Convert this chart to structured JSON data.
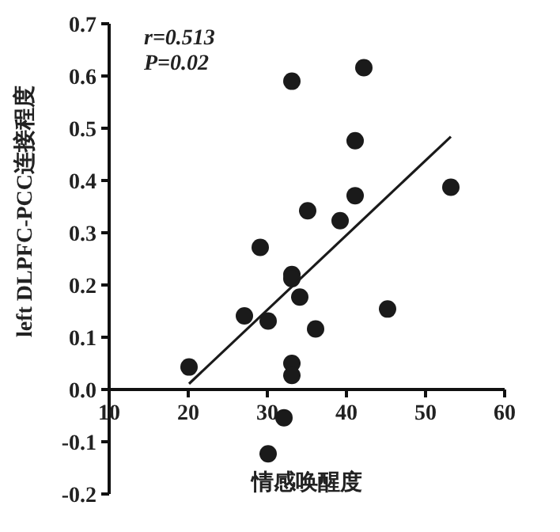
{
  "chart_data": {
    "type": "scatter",
    "xlabel": "情感唤醒度",
    "ylabel": "left DLPFC-PCC连接程度",
    "annotations": [
      "r=0.513",
      "P=0.02"
    ],
    "xlim": [
      10,
      60
    ],
    "ylim": [
      -0.2,
      0.7
    ],
    "xticks": [
      10,
      20,
      30,
      40,
      50,
      60
    ],
    "yticks": [
      -0.2,
      -0.1,
      {
        "value": 0,
        "label": "0.0"
      },
      0.1,
      0.2,
      0.3,
      0.4,
      0.5,
      0.6,
      0.7
    ],
    "grid": false,
    "series": [
      {
        "color": "#1a1a1a",
        "marker": "circle",
        "x": [
          33.1,
          42.2,
          41.1,
          53.2,
          41.1,
          35.1,
          39.2,
          29.1,
          33.1,
          33.1,
          34.1,
          27.1,
          30.1,
          36.1,
          45.2,
          20.1,
          33.1,
          33.1,
          32.1,
          30.1
        ],
        "values": [
          0.59,
          0.616,
          0.476,
          0.387,
          0.371,
          0.342,
          0.323,
          0.272,
          0.22,
          0.212,
          0.177,
          0.141,
          0.131,
          0.116,
          0.154,
          0.043,
          0.05,
          0.027,
          -0.054,
          -0.123
        ]
      },
      {
        "type": "line",
        "color": "#1a1a1a",
        "line_style": "solid",
        "x": [
          20.1,
          53.2
        ],
        "values": [
          0.011,
          0.484
        ]
      }
    ]
  }
}
